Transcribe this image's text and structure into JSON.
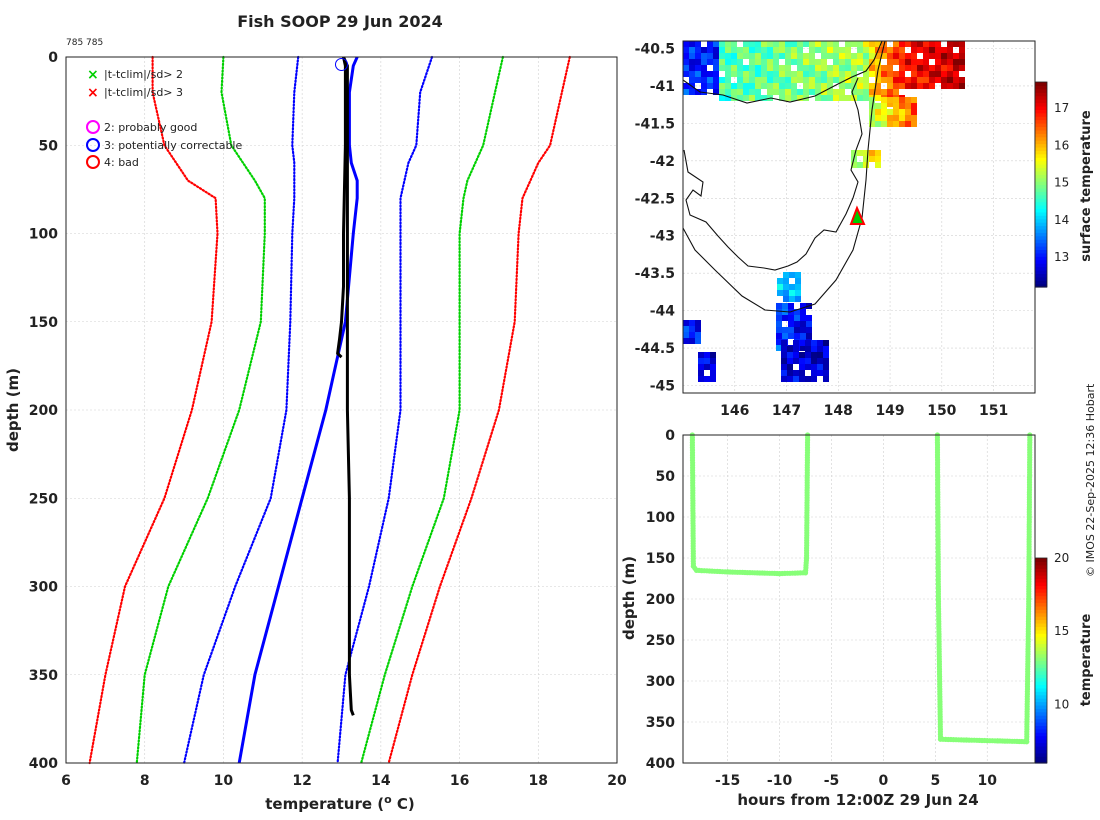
{
  "title": "Fish SOOP 29 Jun 2024",
  "id_label": "785 785",
  "credit": "© IMOS 22-Sep-2025 12:36 Hobart",
  "colors": {
    "sd2": "#00d000",
    "sd3": "#ff0000",
    "clim": "#0000ff",
    "probe": "#000000",
    "flag1": "#ff00ff",
    "flag3": "#0000ff",
    "flag4": "#ff0000",
    "track": "#00ee00"
  },
  "legend": {
    "sd2": "|t-tclim|/sd> 2",
    "sd3": "|t-tclim|/sd> 3",
    "flag1": "2: probably good",
    "flag3": "3: potentially correctable",
    "flag4": "4: bad"
  },
  "chart_data": [
    {
      "name": "profile",
      "type": "line",
      "xlabel": "temperature (",
      "xlabel_sup": "o",
      "xlabel_tail": " C)",
      "ylabel": "depth (m)",
      "xlim": [
        6,
        20
      ],
      "ylim": [
        400,
        0
      ],
      "xticks": [
        6,
        8,
        10,
        12,
        14,
        16,
        18,
        20
      ],
      "yticks": [
        0,
        50,
        100,
        150,
        200,
        250,
        300,
        350,
        400
      ],
      "grid": true,
      "series": [
        {
          "name": "climatology",
          "style": "solid",
          "role": "clim",
          "depth": [
            0,
            5,
            20,
            40,
            50,
            60,
            70,
            80,
            100,
            150,
            180,
            200,
            250,
            300,
            350,
            400
          ],
          "temp": [
            13.4,
            13.3,
            13.2,
            13.2,
            13.2,
            13.25,
            13.4,
            13.4,
            13.3,
            13.1,
            12.8,
            12.6,
            12.0,
            11.4,
            10.8,
            10.4
          ]
        },
        {
          "name": "clim -1sd",
          "style": "dotted",
          "role": "clim",
          "depth": [
            0,
            20,
            50,
            60,
            80,
            100,
            150,
            200,
            250,
            300,
            350,
            400
          ],
          "temp": [
            11.9,
            11.8,
            11.75,
            11.8,
            11.8,
            11.75,
            11.7,
            11.6,
            11.2,
            10.3,
            9.5,
            9.0
          ]
        },
        {
          "name": "clim +1sd",
          "style": "dotted",
          "role": "clim",
          "depth": [
            0,
            20,
            50,
            60,
            80,
            100,
            150,
            200,
            250,
            300,
            350,
            400
          ],
          "temp": [
            15.3,
            15.0,
            14.9,
            14.7,
            14.5,
            14.5,
            14.5,
            14.5,
            14.2,
            13.7,
            13.1,
            12.9
          ]
        },
        {
          "name": "clim -2sd",
          "style": "dotted",
          "role": "sd2",
          "depth": [
            0,
            20,
            50,
            70,
            80,
            100,
            150,
            200,
            250,
            300,
            350,
            400
          ],
          "temp": [
            10.0,
            9.95,
            10.2,
            10.8,
            11.05,
            11.05,
            10.95,
            10.4,
            9.6,
            8.6,
            8.0,
            7.8
          ]
        },
        {
          "name": "clim +2sd",
          "style": "dotted",
          "role": "sd2",
          "depth": [
            0,
            20,
            50,
            70,
            80,
            100,
            150,
            200,
            250,
            300,
            350,
            400
          ],
          "temp": [
            17.1,
            16.9,
            16.6,
            16.2,
            16.1,
            16.0,
            16.0,
            16.0,
            15.6,
            14.8,
            14.1,
            13.5
          ]
        },
        {
          "name": "clim -3sd",
          "style": "dotted",
          "role": "sd3",
          "depth": [
            0,
            20,
            50,
            70,
            80,
            100,
            150,
            200,
            250,
            300,
            350,
            400
          ],
          "temp": [
            8.2,
            8.2,
            8.5,
            9.1,
            9.8,
            9.85,
            9.7,
            9.2,
            8.5,
            7.5,
            7.0,
            6.6
          ]
        },
        {
          "name": "clim +3sd",
          "style": "dotted",
          "role": "sd3",
          "depth": [
            0,
            20,
            50,
            60,
            70,
            80,
            100,
            150,
            200,
            250,
            300,
            350,
            400
          ],
          "temp": [
            18.8,
            18.6,
            18.3,
            18.0,
            17.8,
            17.6,
            17.5,
            17.4,
            17.0,
            16.3,
            15.5,
            14.8,
            14.2
          ]
        },
        {
          "name": "probe cast 1",
          "style": "solid",
          "role": "probe",
          "depth": [
            0,
            5,
            20,
            50,
            100,
            130,
            150,
            160,
            168,
            170
          ],
          "temp": [
            13.05,
            13.1,
            13.1,
            13.1,
            13.05,
            13.05,
            13.0,
            12.95,
            12.9,
            13.0
          ]
        },
        {
          "name": "probe cast 2",
          "style": "solid",
          "role": "probe",
          "depth": [
            0,
            5,
            50,
            100,
            150,
            200,
            250,
            300,
            350,
            370,
            373
          ],
          "temp": [
            13.05,
            13.15,
            13.15,
            13.15,
            13.15,
            13.15,
            13.2,
            13.2,
            13.2,
            13.25,
            13.3
          ]
        }
      ],
      "flags": [
        {
          "depth": 2,
          "temp": 13.0,
          "flag": "3: potentially correctable"
        }
      ]
    },
    {
      "name": "surface-map",
      "type": "heatmap",
      "xlim": [
        145.0,
        151.8
      ],
      "ylim": [
        -45.1,
        -40.4
      ],
      "xticks": [
        146,
        147,
        148,
        149,
        150,
        151
      ],
      "yticks": [
        -40.5,
        -41,
        -41.5,
        -42,
        -42.5,
        -43,
        -43.5,
        -44,
        -44.5,
        -45
      ],
      "colorbar": {
        "label": "surface temperature",
        "min": 12.2,
        "max": 17.7,
        "ticks": [
          13,
          14,
          15,
          16,
          17
        ]
      },
      "marker": {
        "lon": 148.4,
        "lat": -42.65,
        "shape": "triangle"
      }
    },
    {
      "name": "depth-time",
      "type": "scatter",
      "xlabel": "hours from 12:00Z 29 Jun 24",
      "ylabel": "depth (m)",
      "xlim": [
        -19.3,
        14.6
      ],
      "ylim": [
        400,
        0
      ],
      "xticks": [
        -15,
        -10,
        -5,
        0,
        5,
        10
      ],
      "yticks": [
        0,
        50,
        100,
        150,
        200,
        250,
        300,
        350,
        400
      ],
      "colorbar": {
        "label": "temperature",
        "min": 6,
        "max": 20,
        "ticks": [
          10,
          15,
          20
        ]
      },
      "segments": [
        {
          "hours": [
            -18.4,
            -18.3,
            -18.0,
            -15.0,
            -10.0,
            -7.5,
            -7.4,
            -7.3
          ],
          "depth": [
            0,
            160,
            165,
            167,
            169,
            168,
            150,
            0
          ]
        },
        {
          "hours": [
            5.2,
            5.3,
            5.5,
            8.0,
            11.0,
            13.8,
            14.0,
            14.1
          ],
          "depth": [
            0,
            200,
            371,
            372,
            373,
            374,
            200,
            0
          ]
        }
      ],
      "temp": 13.1
    }
  ]
}
